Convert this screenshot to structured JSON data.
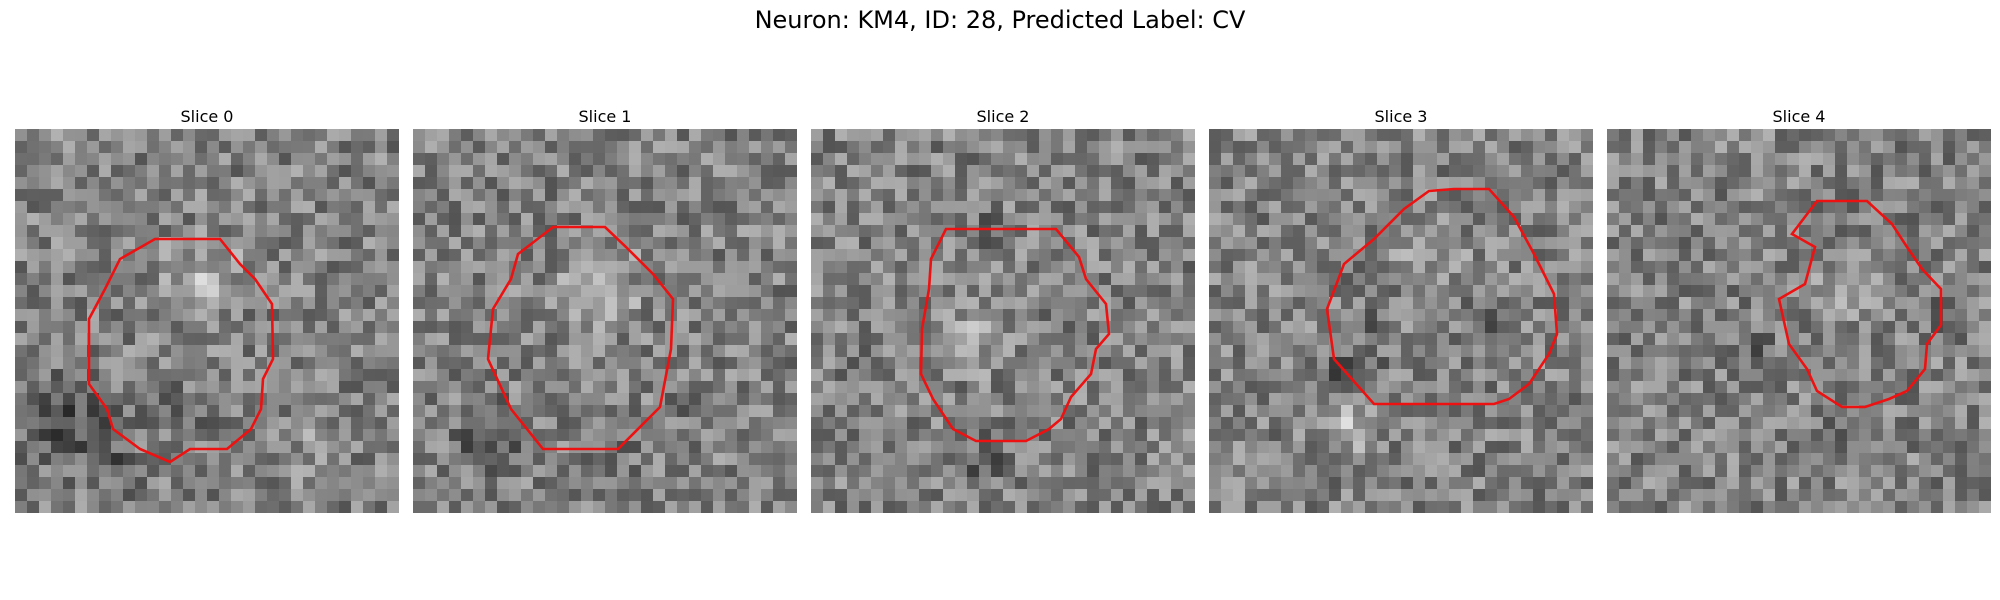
{
  "figure": {
    "title": "Neuron: KM4, ID: 28, Predicted Label: CV"
  },
  "panels": [
    {
      "title": "Slice 0",
      "contour_color": "#ee1111"
    },
    {
      "title": "Slice 1",
      "contour_color": "#ee1111"
    },
    {
      "title": "Slice 2",
      "contour_color": "#ee1111"
    },
    {
      "title": "Slice 3",
      "contour_color": "#ee1111"
    },
    {
      "title": "Slice 4",
      "contour_color": "#ee1111"
    }
  ]
}
